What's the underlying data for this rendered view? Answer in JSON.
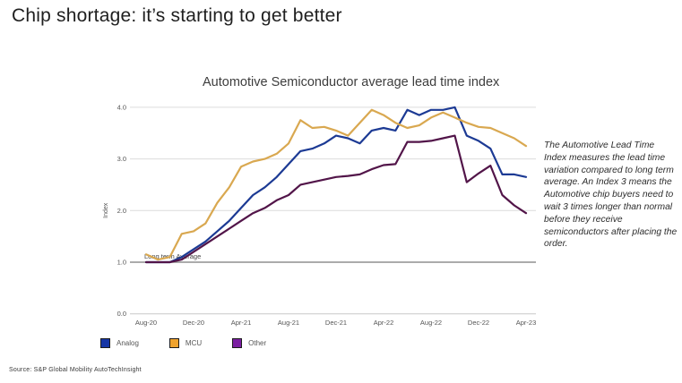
{
  "page": {
    "title": "Chip shortage: it’s starting to get better",
    "source": "Source: S&P Global Mobility AutoTechInsight"
  },
  "annotation": {
    "text": "The Automotive Lead Time Index measures the lead time variation compared to long term average. An Index 3 means the Automotive chip buyers need to wait 3 times longer than normal before they receive semiconductors after placing the order."
  },
  "chart_data": {
    "type": "line",
    "title": "Automotive Semiconductor average lead time index",
    "xlabel": "",
    "ylabel": "Index",
    "ylim": [
      0,
      4.3
    ],
    "grid": true,
    "legend_position": "bottom",
    "yticks": [
      4.0,
      3.0,
      2.0,
      1.0,
      0.0
    ],
    "ytick_labels": [
      "4.0",
      "3.0",
      "2.0",
      "1.0",
      "0.0"
    ],
    "x": [
      "Aug-20",
      "Sep-20",
      "Oct-20",
      "Nov-20",
      "Dec-20",
      "Jan-21",
      "Feb-21",
      "Mar-21",
      "Apr-21",
      "May-21",
      "Jun-21",
      "Jul-21",
      "Aug-21",
      "Sep-21",
      "Oct-21",
      "Nov-21",
      "Dec-21",
      "Jan-22",
      "Feb-22",
      "Mar-22",
      "Apr-22",
      "May-22",
      "Jun-22",
      "Jul-22",
      "Aug-22",
      "Sep-22",
      "Oct-22",
      "Nov-22",
      "Dec-22",
      "Jan-23",
      "Feb-23",
      "Mar-23",
      "Apr-23"
    ],
    "x_tick_labels": [
      "Aug-20",
      "Dec-20",
      "Apr-21",
      "Aug-21",
      "Dec-21",
      "Apr-22",
      "Aug-22",
      "Dec-22",
      "Apr-23"
    ],
    "reference_line": {
      "value": 1.0,
      "label": "Long term Average",
      "color": "#8f8f8f"
    },
    "series": [
      {
        "name": "Analog",
        "color": "#1c3a94",
        "legend_color": "#1535a5",
        "values": [
          1.0,
          1.0,
          1.0,
          1.1,
          1.25,
          1.4,
          1.6,
          1.8,
          2.05,
          2.3,
          2.45,
          2.65,
          2.9,
          3.15,
          3.2,
          3.3,
          3.45,
          3.4,
          3.3,
          3.55,
          3.6,
          3.55,
          3.95,
          3.85,
          3.95,
          3.95,
          4.0,
          3.45,
          3.35,
          3.2,
          2.7,
          2.7,
          2.65
        ]
      },
      {
        "name": "MCU",
        "color": "#d9a850",
        "legend_color": "#efa32e",
        "values": [
          1.15,
          1.05,
          1.1,
          1.55,
          1.6,
          1.75,
          2.15,
          2.45,
          2.85,
          2.95,
          3.0,
          3.1,
          3.3,
          3.75,
          3.6,
          3.62,
          3.55,
          3.45,
          3.7,
          3.95,
          3.85,
          3.7,
          3.6,
          3.65,
          3.8,
          3.9,
          3.8,
          3.7,
          3.62,
          3.6,
          3.5,
          3.4,
          3.25
        ]
      },
      {
        "name": "Other",
        "color": "#521549",
        "legend_color": "#7b1fa2",
        "values": [
          1.0,
          1.0,
          1.0,
          1.05,
          1.2,
          1.35,
          1.5,
          1.65,
          1.8,
          1.95,
          2.05,
          2.2,
          2.3,
          2.5,
          2.55,
          2.6,
          2.65,
          2.67,
          2.7,
          2.8,
          2.88,
          2.9,
          3.33,
          3.33,
          3.35,
          3.4,
          3.45,
          2.55,
          2.72,
          2.87,
          2.3,
          2.1,
          1.95
        ]
      }
    ]
  }
}
